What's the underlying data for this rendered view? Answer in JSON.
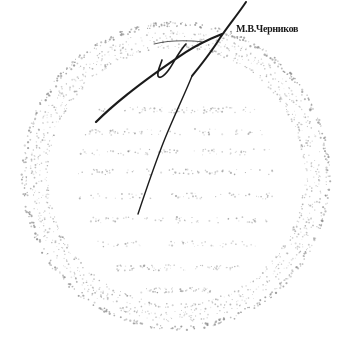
{
  "signer": {
    "name": "М.В.Черников"
  },
  "colors": {
    "ink": "#1a1a1a",
    "stamp_dots": "#8c8c8c",
    "paper": "#ffffff"
  },
  "icons": {
    "seal": "round-seal",
    "signature": "handwritten-signature"
  }
}
